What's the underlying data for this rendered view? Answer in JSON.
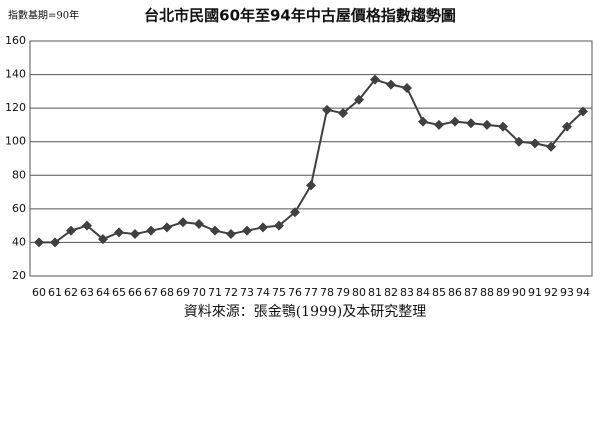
{
  "chart_data": {
    "type": "line",
    "note": "指數基期=90年",
    "title": "台北市民國60年至94年中古屋價格指數趨勢圖",
    "source": "資料來源：張金鶚(1999)及本研究整理",
    "categories": [
      "60",
      "61",
      "62",
      "63",
      "64",
      "65",
      "66",
      "67",
      "68",
      "69",
      "70",
      "71",
      "72",
      "73",
      "74",
      "75",
      "76",
      "77",
      "78",
      "79",
      "80",
      "81",
      "82",
      "83",
      "84",
      "85",
      "86",
      "87",
      "88",
      "89",
      "90",
      "91",
      "92",
      "93",
      "94"
    ],
    "series": [
      {
        "color": "#404040",
        "values": [
          40,
          40,
          47,
          50,
          42,
          46,
          45,
          47,
          49,
          52,
          51,
          47,
          45,
          47,
          49,
          50,
          58,
          74,
          119,
          117,
          125,
          137,
          134,
          132,
          112,
          110,
          112,
          111,
          110,
          109,
          100,
          99,
          97,
          109,
          118
        ]
      }
    ],
    "ylim": [
      20,
      160
    ],
    "yticks": [
      20,
      40,
      60,
      80,
      100,
      120,
      140,
      160
    ],
    "grid": true
  }
}
